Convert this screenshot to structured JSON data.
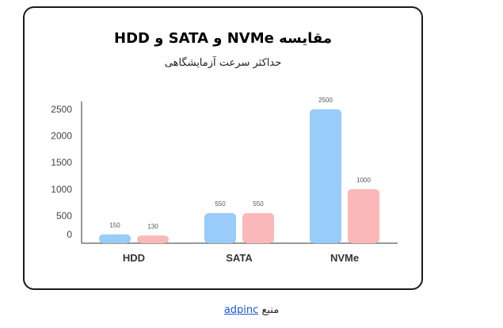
{
  "chart_data": {
    "type": "bar",
    "title": "مقایسه NVMe و SATA و HDD",
    "subtitle": "حداکثر سرعت آزمایشگاهی",
    "categories": [
      "HDD",
      "SATA",
      "NVMe"
    ],
    "series": [
      {
        "values": [
          150,
          550,
          2500
        ],
        "color": "#99ccf8"
      },
      {
        "values": [
          130,
          550,
          1000
        ],
        "color": "#fbb8b8"
      }
    ],
    "yticks": [
      "0",
      "500",
      "1000",
      "1500",
      "2000",
      "2500"
    ],
    "ylim": [
      0,
      2500
    ],
    "grid": false,
    "legend": "none"
  },
  "source": {
    "label": "منبع",
    "link_text": "adpinc"
  }
}
